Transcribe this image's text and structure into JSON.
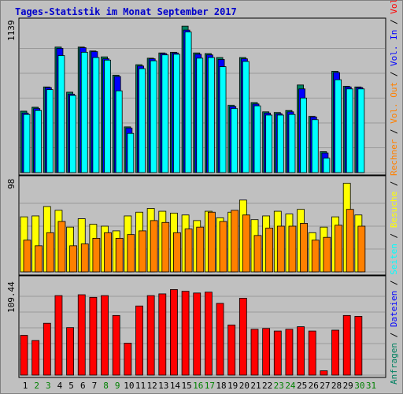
{
  "title": "Tages-Statistik im Monat September 2017",
  "colors": {
    "frame": "#c0c0c0",
    "panel": "#c0c0c0",
    "title": "#0000cc",
    "anfragen": "#008060",
    "dateien": "#0000ff",
    "seiten": "#00ffff",
    "besuche": "#ffff00",
    "rechner": "#ff8000",
    "volumen": "#ff0000",
    "day_weekday": "#000000",
    "day_weekend": "#008000"
  },
  "right_labels": {
    "top": [
      {
        "text": "Anfragen",
        "color": "#008060"
      },
      {
        "text": " / ",
        "color": "#000000"
      },
      {
        "text": "Dateien",
        "color": "#0000ff"
      },
      {
        "text": " / ",
        "color": "#000000"
      },
      {
        "text": "Seiten",
        "color": "#00ffff"
      },
      {
        "text": " / ",
        "color": "#000000"
      },
      {
        "text": "Besuche",
        "color": "#ffff00"
      },
      {
        "text": " / ",
        "color": "#000000"
      },
      {
        "text": "Rechner",
        "color": "#ff8000"
      },
      {
        "text": " / ",
        "color": "#000000"
      },
      {
        "text": "Vol. Out",
        "color": "#ff8000"
      },
      {
        "text": " / ",
        "color": "#000000"
      },
      {
        "text": "Vol. In",
        "color": "#0000ff"
      },
      {
        "text": " / ",
        "color": "#000000"
      },
      {
        "text": "Volumen",
        "color": "#ff0000"
      }
    ]
  },
  "chart_data": [
    {
      "type": "bar",
      "panel": "top",
      "ymax_label": "1139",
      "ylim": [
        0,
        1139
      ],
      "categories": [
        "1",
        "2",
        "3",
        "4",
        "5",
        "6",
        "7",
        "8",
        "9",
        "10",
        "11",
        "12",
        "13",
        "14",
        "15",
        "16",
        "17",
        "18",
        "19",
        "20",
        "21",
        "22",
        "23",
        "24",
        "25",
        "26",
        "27",
        "28",
        "29",
        "30",
        "31"
      ],
      "weekend_days": [
        "2",
        "3",
        "8",
        "9",
        "16",
        "17",
        "23",
        "24",
        "30",
        "31"
      ],
      "series": [
        {
          "name": "Anfragen",
          "values": [
            470,
            500,
            655,
            960,
            615,
            960,
            930,
            885,
            745,
            350,
            825,
            875,
            915,
            920,
            1120,
            915,
            910,
            880,
            515,
            880,
            535,
            465,
            460,
            475,
            670,
            430,
            160,
            775,
            660,
            655,
            0
          ]
        },
        {
          "name": "Dateien",
          "values": [
            455,
            490,
            650,
            950,
            600,
            955,
            925,
            870,
            735,
            340,
            815,
            870,
            910,
            915,
            1090,
            905,
            900,
            865,
            505,
            870,
            525,
            455,
            450,
            465,
            640,
            425,
            150,
            765,
            655,
            650,
            0
          ]
        },
        {
          "name": "Seiten",
          "values": [
            445,
            475,
            635,
            895,
            590,
            920,
            880,
            860,
            625,
            300,
            795,
            855,
            900,
            905,
            1075,
            875,
            880,
            810,
            490,
            850,
            510,
            440,
            440,
            445,
            570,
            405,
            110,
            710,
            640,
            640,
            0
          ]
        }
      ]
    },
    {
      "type": "bar",
      "panel": "middle",
      "ymax_label": "98",
      "ylim": [
        0,
        98
      ],
      "categories": [
        "1",
        "2",
        "3",
        "4",
        "5",
        "6",
        "7",
        "8",
        "9",
        "10",
        "11",
        "12",
        "13",
        "14",
        "15",
        "16",
        "17",
        "18",
        "19",
        "20",
        "21",
        "22",
        "23",
        "24",
        "25",
        "26",
        "27",
        "28",
        "29",
        "30",
        "31"
      ],
      "series": [
        {
          "name": "Besuche",
          "values": [
            59,
            60,
            70,
            66,
            48,
            57,
            51,
            49,
            44,
            60,
            64,
            68,
            65,
            63,
            61,
            55,
            65,
            58,
            64,
            77,
            56,
            60,
            65,
            62,
            67,
            42,
            48,
            59,
            95,
            61,
            0
          ]
        },
        {
          "name": "Rechner",
          "values": [
            34,
            28,
            42,
            54,
            28,
            30,
            36,
            42,
            36,
            40,
            44,
            55,
            53,
            42,
            46,
            48,
            64,
            54,
            66,
            61,
            39,
            47,
            49,
            49,
            52,
            34,
            37,
            50,
            67,
            49,
            0
          ]
        }
      ]
    },
    {
      "type": "bar",
      "panel": "bottom",
      "ymax_label": "109.44",
      "ylim": [
        0,
        109.44
      ],
      "categories": [
        "1",
        "2",
        "3",
        "4",
        "5",
        "6",
        "7",
        "8",
        "9",
        "10",
        "11",
        "12",
        "13",
        "14",
        "15",
        "16",
        "17",
        "18",
        "19",
        "20",
        "21",
        "22",
        "23",
        "24",
        "25",
        "26",
        "27",
        "28",
        "29",
        "30",
        "31"
      ],
      "series": [
        {
          "name": "Volumen",
          "values": [
            46,
            40,
            60,
            92,
            55,
            93,
            90,
            92,
            69,
            37,
            80,
            92,
            94,
            99,
            97,
            95,
            96,
            83,
            58,
            89,
            53,
            54,
            51,
            53,
            56,
            51,
            5,
            52,
            69,
            68,
            0
          ]
        }
      ]
    }
  ]
}
